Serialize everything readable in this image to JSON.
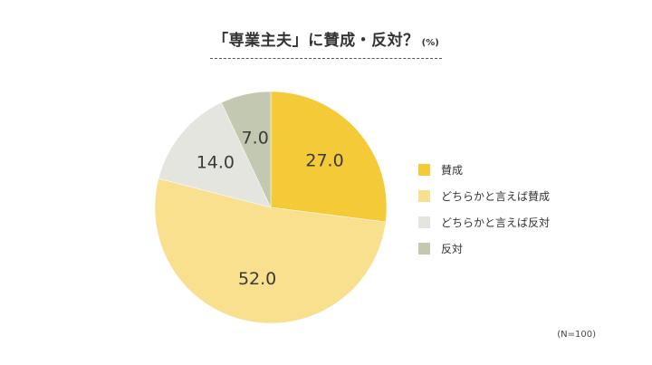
{
  "chart_data": {
    "type": "pie",
    "title": "「専業主夫」に賛成・反対？",
    "unit": "(%)",
    "categories": [
      "賛成",
      "どちらかと言えば賛成",
      "どちらかと言えば反対",
      "反対"
    ],
    "values": [
      27.0,
      52.0,
      14.0,
      7.0
    ],
    "value_labels": [
      "27.0",
      "52.0",
      "14.0",
      "7.0"
    ],
    "colors": [
      "#f4ca38",
      "#f9e08e",
      "#e5e5e0",
      "#c3c8b0"
    ],
    "start": "12 o'clock",
    "direction": "clockwise",
    "legend_position": "right",
    "note": "(N=100)"
  }
}
